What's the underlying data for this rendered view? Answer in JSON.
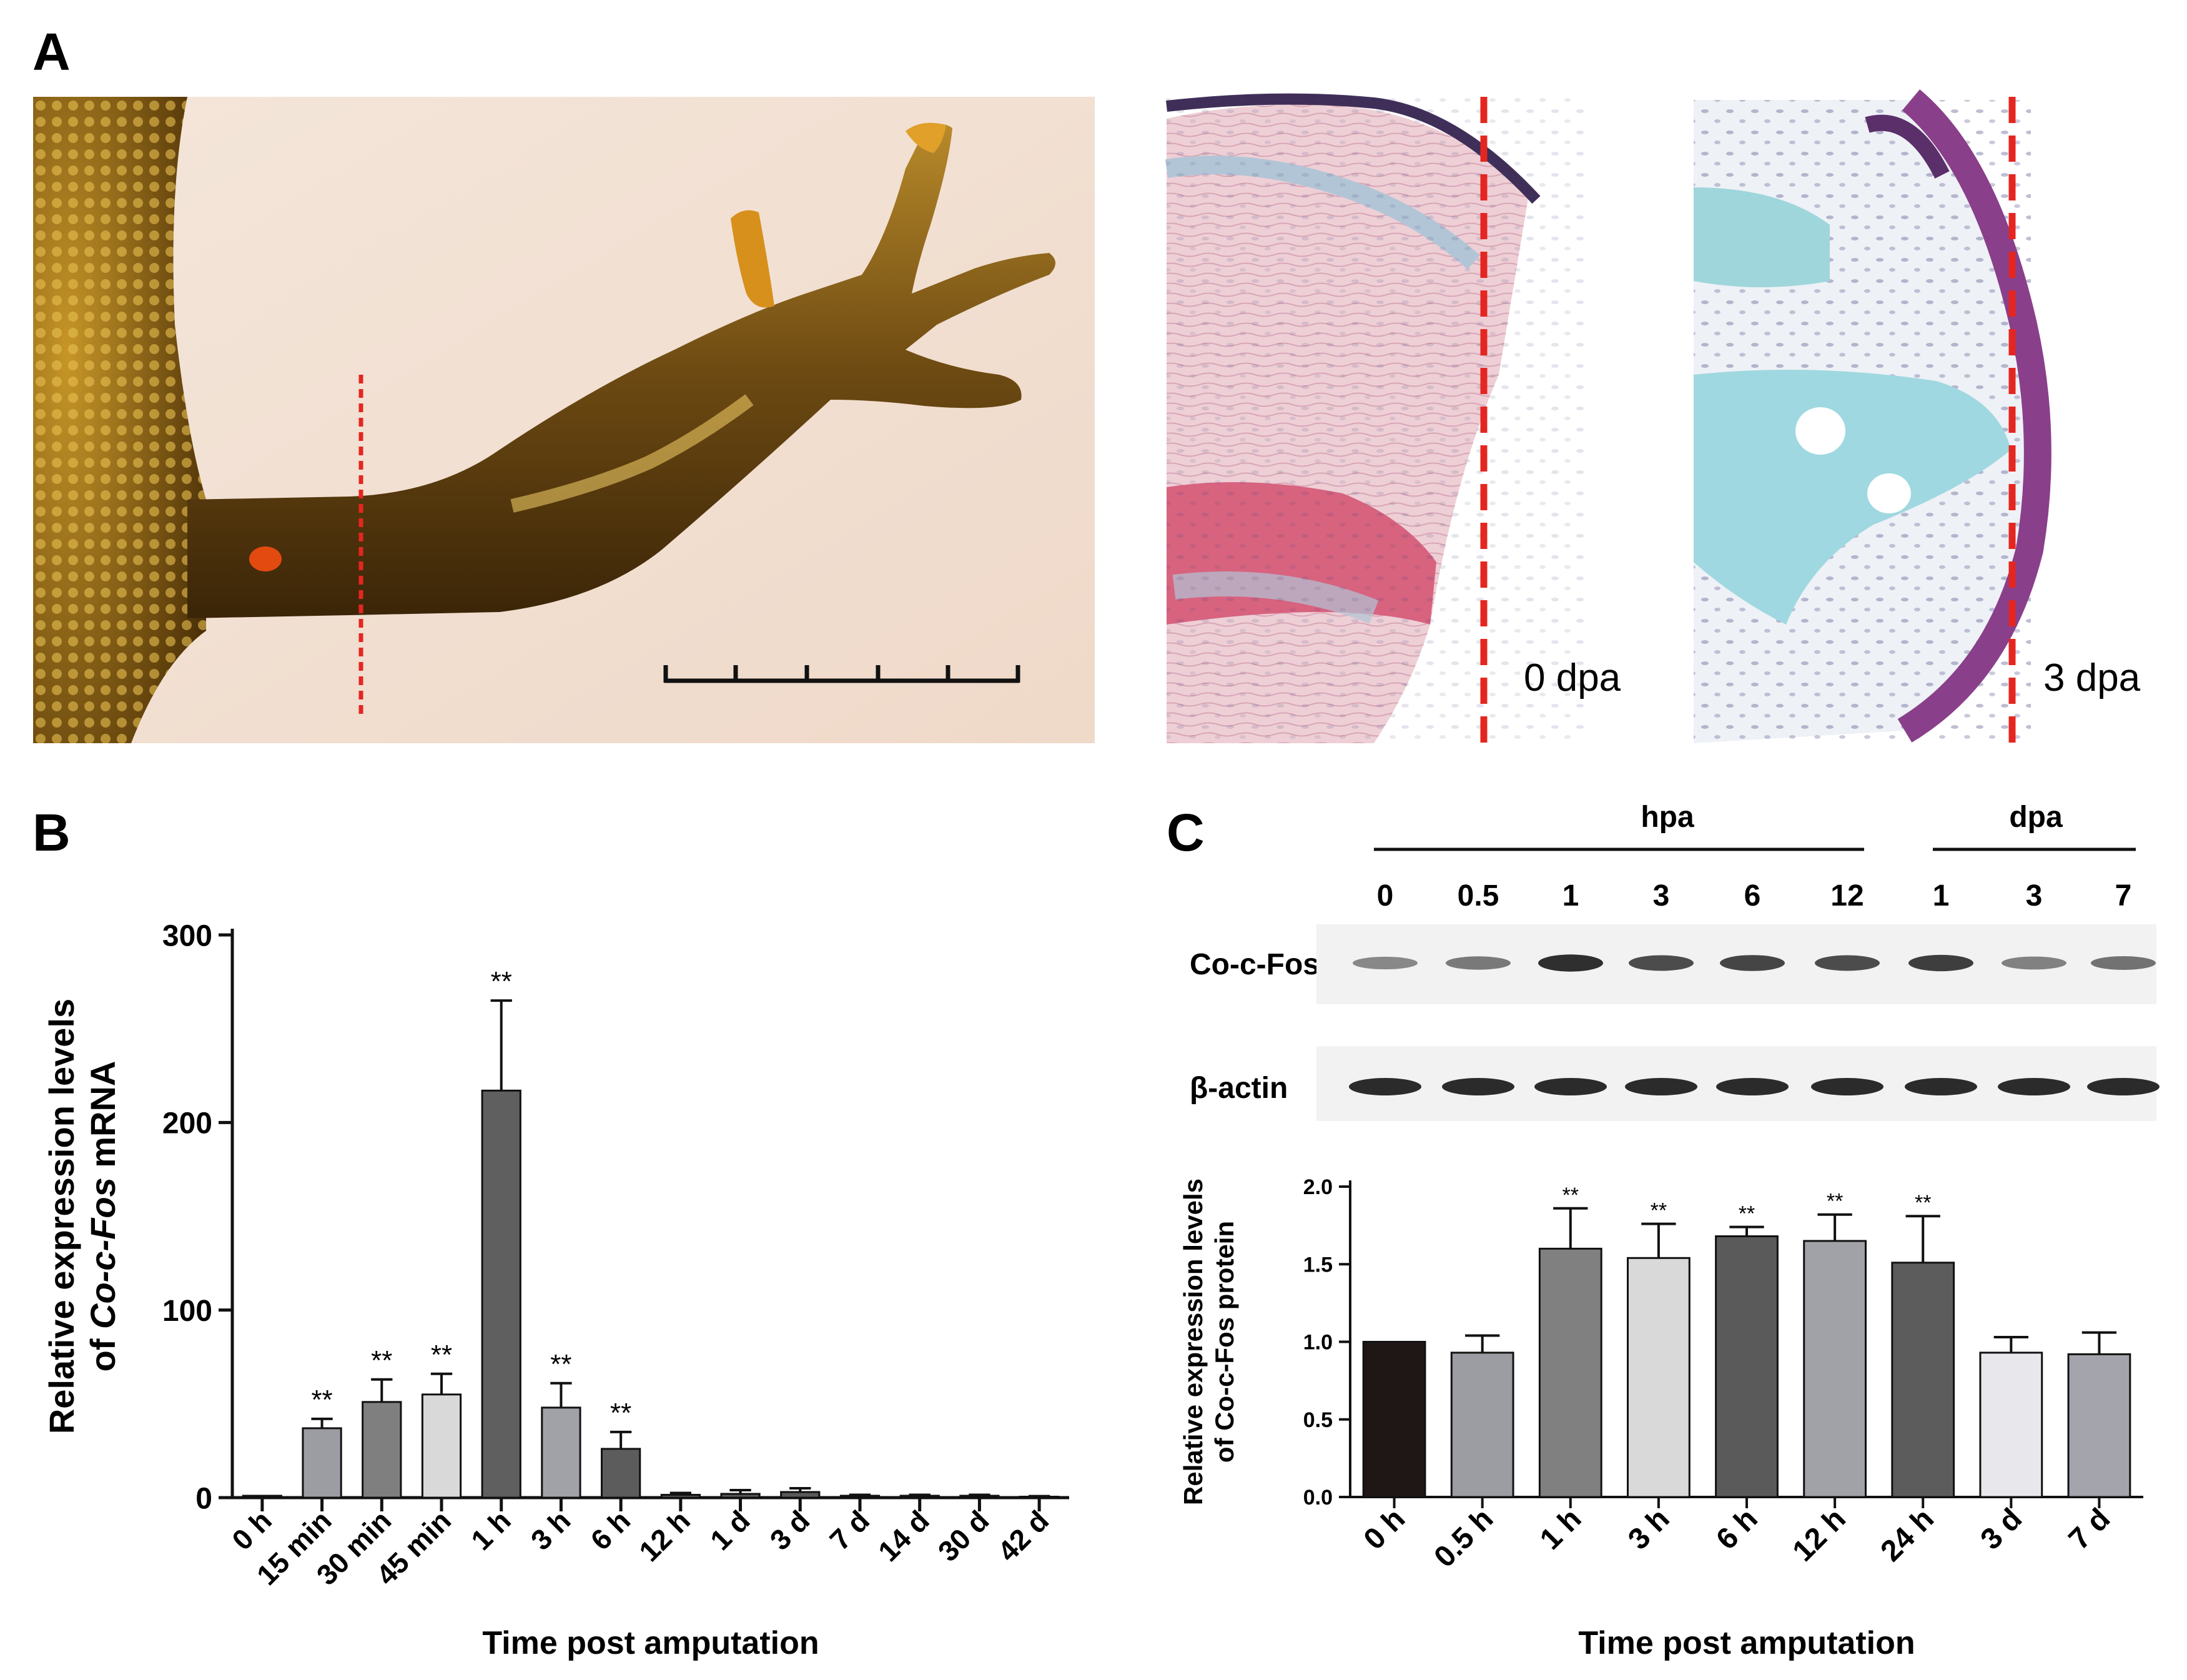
{
  "panels": {
    "a": {
      "letter": "A",
      "histology_labels": [
        "0 dpa",
        "3 dpa"
      ]
    },
    "b": {
      "letter": "B"
    },
    "c": {
      "letter": "C",
      "blot": {
        "group_labels": [
          "hpa",
          "dpa"
        ],
        "lane_labels": [
          "0",
          "0.5",
          "1",
          "3",
          "6",
          "12",
          "1",
          "3",
          "7"
        ],
        "row_labels": [
          "Co-c-Fos",
          "β-actin"
        ],
        "cfos_band_intensity": [
          0.35,
          0.45,
          0.95,
          0.75,
          0.8,
          0.75,
          0.85,
          0.4,
          0.5
        ]
      }
    }
  },
  "colors": {
    "cut_line": "#e52620",
    "bar_outline": "#111111"
  },
  "chart_data": [
    {
      "type": "bar",
      "panel": "B",
      "categories": [
        "0 h",
        "15 min",
        "30 min",
        "45 min",
        "1 h",
        "3 h",
        "6 h",
        "12 h",
        "1 d",
        "3 d",
        "7 d",
        "14 d",
        "30 d",
        "42 d"
      ],
      "values": [
        1,
        37,
        51,
        55,
        217,
        48,
        26,
        1.5,
        2,
        3,
        1,
        1,
        1,
        0.5
      ],
      "errors": [
        0,
        5,
        12,
        11,
        48,
        13,
        9,
        1,
        2,
        2,
        0.5,
        0.5,
        0.5,
        0.3
      ],
      "significance": [
        "",
        "**",
        "**",
        "**",
        "**",
        "**",
        "**",
        "",
        "",
        "",
        "",
        "",
        "",
        ""
      ],
      "bar_colors": [
        "#5a5a5a",
        "#9b9da3",
        "#7f7f7f",
        "#d9d9d9",
        "#5f5f5f",
        "#a0a2a8",
        "#5c5c5c",
        "#5a5a5a",
        "#5a5a5a",
        "#5a5a5a",
        "#5a5a5a",
        "#5a5a5a",
        "#5a5a5a",
        "#5a5a5a"
      ],
      "ylabel_lines": [
        "Relative expression levels",
        "of |Co-c-Fos| mRNA"
      ],
      "xlabel": "Time post amputation",
      "ylim": [
        0,
        300
      ],
      "yticks": [
        0,
        100,
        200,
        300
      ]
    },
    {
      "type": "bar",
      "panel": "C",
      "categories": [
        "0 h",
        "0.5 h",
        "1 h",
        "3 h",
        "6 h",
        "12 h",
        "24 h",
        "3 d",
        "7 d"
      ],
      "values": [
        1.0,
        0.93,
        1.6,
        1.54,
        1.68,
        1.65,
        1.51,
        0.93,
        0.92
      ],
      "errors": [
        0,
        0.11,
        0.26,
        0.22,
        0.06,
        0.17,
        0.3,
        0.1,
        0.14
      ],
      "significance": [
        "",
        "",
        "**",
        "**",
        "**",
        "**",
        "**",
        "",
        ""
      ],
      "bar_colors": [
        "#1e1716",
        "#9b9da3",
        "#808080",
        "#d9d9d9",
        "#5a5a5a",
        "#a0a2a8",
        "#5c5c5c",
        "#e8e8ec",
        "#a3a4ac"
      ],
      "ylabel_lines": [
        "Relative expression levels",
        "of Co-c-Fos protein"
      ],
      "xlabel": "Time post amputation",
      "ylim": [
        0,
        2.0
      ],
      "yticks": [
        "0.0",
        "0.5",
        "1.0",
        "1.5",
        "2.0"
      ]
    }
  ]
}
